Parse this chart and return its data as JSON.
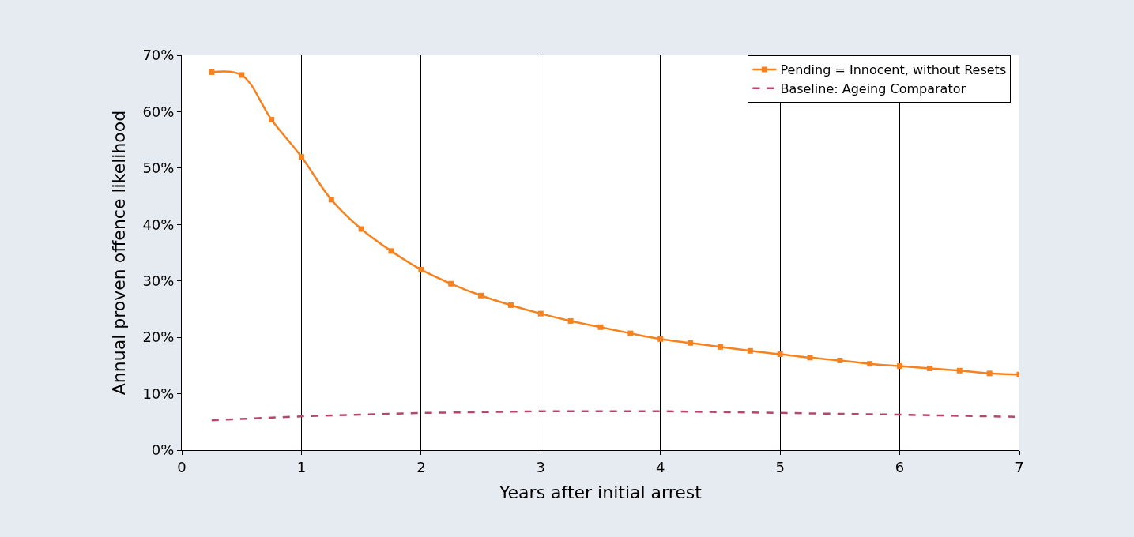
{
  "chart_data": {
    "type": "line",
    "xlabel": "Years after initial arrest",
    "ylabel": "Annual proven offence likelihood",
    "xlim": [
      0,
      7
    ],
    "xticks": [
      0,
      1,
      2,
      3,
      4,
      5,
      6,
      7
    ],
    "ylim": [
      0,
      70
    ],
    "yticks": [
      {
        "value": 0,
        "label": "0%"
      },
      {
        "value": 10,
        "label": "10%"
      },
      {
        "value": 20,
        "label": "20%"
      },
      {
        "value": 30,
        "label": "30%"
      },
      {
        "value": 40,
        "label": "40%"
      },
      {
        "value": 50,
        "label": "50%"
      },
      {
        "value": 60,
        "label": "60%"
      },
      {
        "value": 70,
        "label": "70%"
      }
    ],
    "grid": "x",
    "legend": "top right",
    "series": [
      {
        "name": "Pending = Innocent, without Resets",
        "color": "#f5821f",
        "marker": "square",
        "line_style": "solid",
        "x": [
          0.25,
          0.5,
          0.75,
          1,
          1.25,
          1.5,
          1.75,
          2,
          2.25,
          2.5,
          2.75,
          3,
          3.25,
          3.5,
          3.75,
          4,
          4.25,
          4.5,
          4.75,
          5,
          5.25,
          5.5,
          5.75,
          6,
          6.25,
          6.5,
          6.75,
          7
        ],
        "values": [
          67.0,
          66.5,
          58.6,
          52.0,
          44.4,
          39.2,
          35.3,
          32.0,
          29.5,
          27.4,
          25.7,
          24.2,
          22.9,
          21.8,
          20.7,
          19.7,
          19.0,
          18.3,
          17.6,
          17.0,
          16.4,
          15.9,
          15.3,
          14.9,
          14.5,
          14.1,
          13.6,
          13.4
        ]
      },
      {
        "name": "Baseline: Ageing Comparator",
        "color": "#b5476f",
        "marker": "none",
        "line_style": "dashed",
        "x": [
          0.25,
          1,
          2,
          3,
          4,
          5,
          6,
          7
        ],
        "values": [
          5.3,
          6.0,
          6.6,
          6.9,
          6.9,
          6.6,
          6.3,
          5.9
        ]
      }
    ]
  }
}
